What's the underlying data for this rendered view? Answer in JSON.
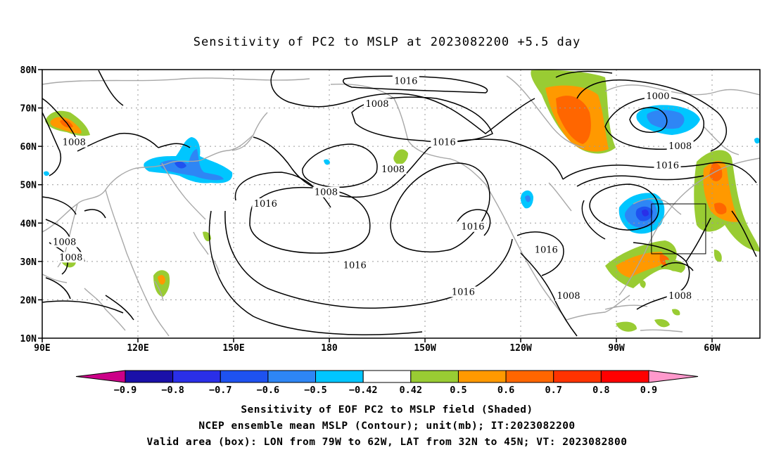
{
  "title": "Sensitivity of PC2 to MSLP at 2023082200 +5.5 day",
  "map": {
    "lat_labels": [
      "80N",
      "70N",
      "60N",
      "50N",
      "40N",
      "30N",
      "20N",
      "10N"
    ],
    "lon_labels": [
      "90E",
      "120E",
      "150E",
      "180",
      "150W",
      "120W",
      "90W",
      "60W"
    ],
    "contour_labels": [
      {
        "text": "1016",
        "lon": 204,
        "lat": 77
      },
      {
        "text": "1008",
        "lon": 195,
        "lat": 71
      },
      {
        "text": "1000",
        "lon": 283,
        "lat": 73
      },
      {
        "text": "1008",
        "lon": 100,
        "lat": 61
      },
      {
        "text": "1016",
        "lon": 216,
        "lat": 61
      },
      {
        "text": "1008",
        "lon": 290,
        "lat": 60
      },
      {
        "text": "1008",
        "lon": 200,
        "lat": 54
      },
      {
        "text": "1016",
        "lon": 286,
        "lat": 55
      },
      {
        "text": "1008",
        "lon": 179,
        "lat": 48
      },
      {
        "text": "1016",
        "lon": 160,
        "lat": 45
      },
      {
        "text": "1016",
        "lon": 225,
        "lat": 39
      },
      {
        "text": "1008",
        "lon": 97,
        "lat": 35
      },
      {
        "text": "1008",
        "lon": 99,
        "lat": 31
      },
      {
        "text": "1016",
        "lon": 248,
        "lat": 33
      },
      {
        "text": "1016",
        "lon": 188,
        "lat": 29
      },
      {
        "text": "1016",
        "lon": 222,
        "lat": 22
      },
      {
        "text": "1008",
        "lon": 255,
        "lat": 21
      },
      {
        "text": "1008",
        "lon": 290,
        "lat": 21
      }
    ]
  },
  "colorbar": {
    "labels": [
      "−0.9",
      "−0.8",
      "−0.7",
      "−0.6",
      "−0.5",
      "−0.42",
      "0.42",
      "0.5",
      "0.6",
      "0.7",
      "0.8",
      "0.9"
    ],
    "colors": [
      "#1a10a8",
      "#2a2fe8",
      "#1e52f0",
      "#2e86f5",
      "#00c6ff",
      "#ffffff",
      "#99cc33",
      "#ff9900",
      "#ff6600",
      "#ff3300",
      "#ff0000"
    ],
    "low_color": "#cc0088",
    "high_color": "#ff99cc"
  },
  "captions": {
    "line1": "Sensitivity of EOF PC2 to MSLP field (Shaded)",
    "line2": "NCEP ensemble mean MSLP (Contour); unit(mb); IT:2023082200",
    "line3": "Valid area (box): LON from 79W to 62W, LAT from 32N to 45N; VT: 2023082800"
  },
  "valid_box": {
    "lon_min": 281,
    "lon_max": 298,
    "lat_min": 32,
    "lat_max": 45
  }
}
